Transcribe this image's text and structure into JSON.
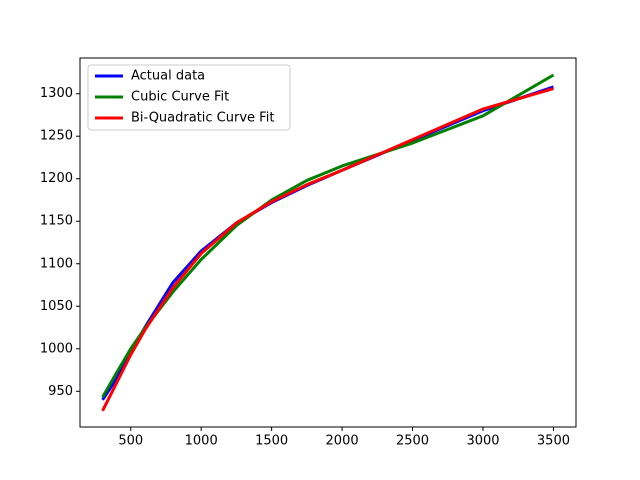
{
  "chart_data": {
    "type": "line",
    "x": [
      300,
      400,
      500,
      600,
      800,
      1000,
      1250,
      1500,
      1750,
      2000,
      2500,
      3000,
      3500
    ],
    "series": [
      {
        "name": "Actual data",
        "color": "#0000ff",
        "values": [
          940,
          965,
          995,
          1025,
          1078,
          1115,
          1148,
          1172,
          1192,
          1210,
          1245,
          1280,
          1308
        ]
      },
      {
        "name": "Cubic Curve Fit",
        "color": "#008000",
        "values": [
          943,
          972,
          1000,
          1024,
          1067,
          1105,
          1145,
          1175,
          1198,
          1215,
          1242,
          1274,
          1322
        ]
      },
      {
        "name": "Bi-Quadratic Curve Fit",
        "color": "#ff0000",
        "values": [
          927,
          960,
          993,
          1022,
          1072,
          1112,
          1148,
          1173,
          1193,
          1210,
          1246,
          1282,
          1306
        ]
      }
    ],
    "xlim": [
      140,
      3660
    ],
    "xticks": [
      500,
      1000,
      1500,
      2000,
      2500,
      3000,
      3500
    ],
    "ylim": [
      908,
      1342
    ],
    "yticks": [
      950,
      1000,
      1050,
      1100,
      1150,
      1200,
      1250,
      1300
    ],
    "grid": false,
    "legend": "upper left"
  }
}
